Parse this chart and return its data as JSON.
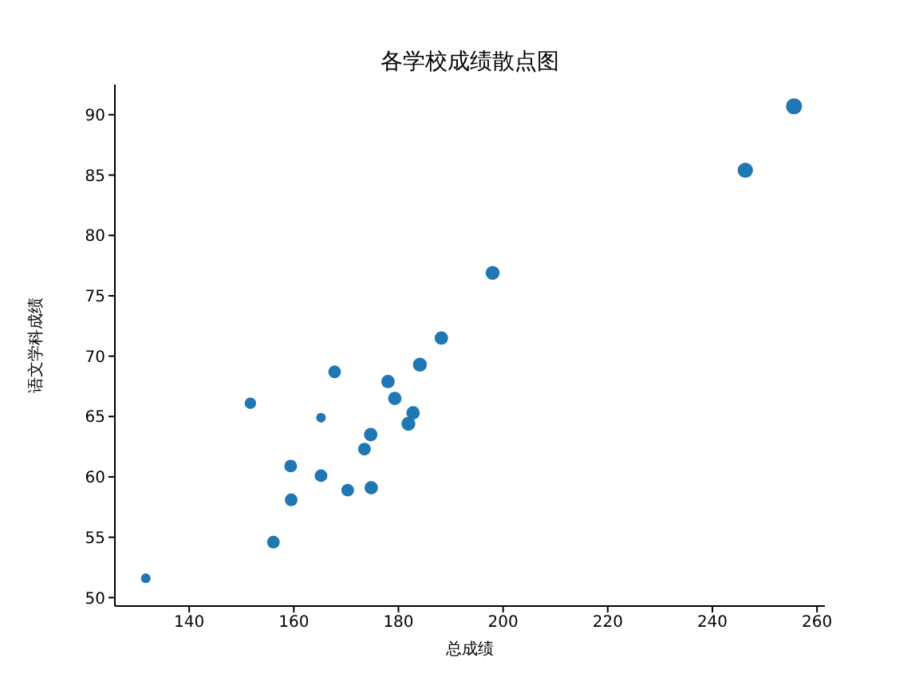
{
  "chart_data": {
    "type": "bubble",
    "title": "各学校成绩散点图",
    "xlabel": "总成绩",
    "ylabel": "语文学科成绩",
    "x": [
      131.7,
      151.7,
      165.2,
      159.4,
      165.2,
      159.5,
      156.1,
      170.3,
      174.8,
      173.5,
      174.7,
      181.9,
      182.8,
      179.3,
      178.0,
      167.8,
      184.1,
      188.2,
      198.0,
      246.3,
      255.6
    ],
    "values": [
      51.6,
      66.1,
      64.9,
      60.9,
      60.1,
      58.1,
      54.6,
      58.9,
      59.1,
      62.3,
      63.5,
      64.4,
      65.3,
      66.5,
      67.9,
      68.7,
      69.3,
      71.5,
      76.9,
      85.4,
      90.7
    ],
    "sizes": [
      0.36,
      0.5,
      0.36,
      0.62,
      0.62,
      0.62,
      0.62,
      0.62,
      0.7,
      0.62,
      0.7,
      0.75,
      0.7,
      0.7,
      0.7,
      0.62,
      0.75,
      0.7,
      0.75,
      0.9,
      1
    ],
    "color": "#1f77b4",
    "xlim": [
      125.8,
      261.5
    ],
    "xticks": [
      140,
      160,
      180,
      200,
      220,
      240,
      260
    ],
    "ylim": [
      49.3,
      92.5
    ],
    "yticks": [
      50,
      55,
      60,
      65,
      70,
      75,
      80,
      85,
      90
    ],
    "grid": false,
    "legend": false
  }
}
